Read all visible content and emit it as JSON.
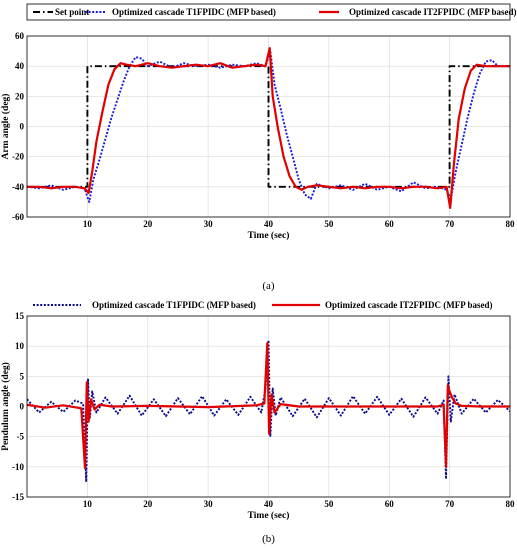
{
  "chart_data": [
    {
      "type": "line",
      "panel_label": "(a)",
      "xlabel": "Time (sec)",
      "ylabel": "Arm angle (deg)",
      "xlim": [
        0,
        80
      ],
      "ylim": [
        -60,
        60
      ],
      "xticks": [
        10,
        20,
        30,
        40,
        50,
        60,
        70,
        80
      ],
      "yticks": [
        -60,
        -40,
        -20,
        0,
        20,
        40,
        60
      ],
      "grid": true,
      "legend_position": "top",
      "series": [
        {
          "name": "Set point",
          "color": "#000000",
          "style": "dash-dot",
          "x": [
            0,
            10,
            10,
            40,
            40,
            70,
            70,
            80
          ],
          "y": [
            -40,
            -40,
            40,
            40,
            -40,
            -40,
            40,
            40
          ]
        },
        {
          "name": "Optimized cascade T1FPIDC (MFP based)",
          "color": "#1a1adb",
          "style": "dotted",
          "x": [
            0,
            2,
            4,
            6,
            8,
            9.5,
            10.3,
            11,
            12,
            13,
            14,
            15,
            16,
            17,
            18,
            19,
            20,
            22,
            24,
            26,
            28,
            30,
            32,
            34,
            36,
            38,
            39.5,
            40.3,
            41,
            42,
            43,
            44,
            45,
            46,
            47,
            48,
            50,
            52,
            54,
            56,
            58,
            60,
            62,
            64,
            66,
            68,
            69.5,
            70.2,
            71,
            72,
            73,
            74,
            75,
            76,
            77,
            78,
            80
          ],
          "y": [
            -40,
            -41,
            -39,
            -42,
            -40,
            -41,
            -50,
            -35,
            -22,
            -8,
            6,
            18,
            30,
            40,
            46,
            45,
            40,
            43,
            39,
            42,
            40,
            41,
            39,
            41,
            40,
            42,
            40,
            50,
            28,
            12,
            -5,
            -20,
            -35,
            -45,
            -48,
            -38,
            -41,
            -39,
            -42,
            -38,
            -42,
            -40,
            -43,
            -37,
            -41,
            -40,
            -42,
            -48,
            -30,
            -12,
            6,
            22,
            35,
            43,
            44,
            40,
            40
          ]
        },
        {
          "name": "Optimized cascade IT2FPIDC (MFP based)",
          "color": "#e00000",
          "style": "solid",
          "x": [
            0,
            2,
            4,
            6,
            8,
            9.5,
            10.2,
            10.8,
            11.5,
            12.5,
            13.5,
            14.5,
            15.5,
            16.5,
            18,
            20,
            22,
            24,
            26,
            28,
            30,
            32,
            34,
            36,
            38,
            39.5,
            40.2,
            40.7,
            41.5,
            42.5,
            43.5,
            44.5,
            45.5,
            46.5,
            48,
            50,
            52,
            54,
            56,
            58,
            60,
            62,
            64,
            66,
            68,
            69.5,
            70.1,
            70.7,
            71.5,
            72.5,
            73.5,
            74.5,
            76,
            78,
            80
          ],
          "y": [
            -40,
            -40,
            -41,
            -40,
            -40,
            -41,
            -44,
            -30,
            -10,
            10,
            28,
            38,
            42,
            41,
            40,
            42,
            40,
            39,
            40,
            41,
            40,
            42,
            39,
            40,
            41,
            40,
            52,
            20,
            0,
            -20,
            -33,
            -40,
            -42,
            -40,
            -39,
            -40,
            -41,
            -40,
            -41,
            -40,
            -40,
            -41,
            -40,
            -40,
            -41,
            -40,
            -54,
            -25,
            5,
            25,
            37,
            41,
            40,
            40,
            40
          ]
        }
      ]
    },
    {
      "type": "line",
      "panel_label": "(b)",
      "xlabel": "Time (sec)",
      "ylabel": "Pendulum angle (deg)",
      "xlim": [
        0,
        80
      ],
      "ylim": [
        -15,
        15
      ],
      "xticks": [
        10,
        20,
        30,
        40,
        50,
        60,
        70,
        80
      ],
      "yticks": [
        -15,
        -10,
        -5,
        0,
        5,
        10,
        15
      ],
      "grid": true,
      "legend_position": "top",
      "series": [
        {
          "name": "Optimized cascade T1FPIDC (MFP based)",
          "color": "#0a0a8a",
          "style": "dotted",
          "x": [
            0,
            2,
            4,
            6,
            8,
            9.3,
            9.8,
            10.1,
            10.4,
            10.8,
            11.5,
            13,
            15,
            17,
            19,
            21,
            23,
            25,
            27,
            29,
            31,
            33,
            35,
            37,
            38.8,
            39.5,
            40,
            40.3,
            40.7,
            41.2,
            42,
            44,
            46,
            48,
            50,
            52,
            54,
            56,
            58,
            60,
            62,
            64,
            66,
            68,
            69,
            69.4,
            69.8,
            70.2,
            70.8,
            72,
            74,
            76,
            78,
            80
          ],
          "y": [
            1.2,
            -1.0,
            0.8,
            -0.9,
            1.0,
            0.5,
            -12.5,
            4.5,
            -2.0,
            2.5,
            -1.0,
            1.5,
            -1.2,
            1.8,
            -1.5,
            1.2,
            -1.6,
            1.4,
            -1.3,
            1.7,
            -1.5,
            1.2,
            -1.4,
            1.6,
            -1.0,
            3.0,
            11.0,
            -5.0,
            3.0,
            -1.5,
            1.5,
            -1.6,
            1.3,
            -1.8,
            1.4,
            -1.5,
            1.7,
            -1.2,
            1.6,
            -1.4,
            1.3,
            -1.7,
            1.5,
            -1.2,
            1.0,
            -12.0,
            5.0,
            -2.5,
            2.0,
            -1.2,
            1.3,
            -1.0,
            1.1,
            -0.8
          ]
        },
        {
          "name": "Optimized cascade IT2FPIDC (MFP based)",
          "color": "#e00000",
          "style": "solid",
          "x": [
            0,
            3,
            6,
            9,
            9.6,
            9.9,
            10.2,
            10.6,
            11.2,
            12,
            14,
            20,
            30,
            38,
            39.3,
            39.8,
            40.1,
            40.5,
            41,
            42,
            45,
            50,
            60,
            68,
            69,
            69.4,
            69.7,
            70,
            70.4,
            71,
            72,
            75,
            80
          ],
          "y": [
            0.3,
            -0.2,
            0.2,
            -0.3,
            -10.2,
            4.0,
            -2.5,
            1.2,
            -0.5,
            0.3,
            0,
            0.1,
            -0.1,
            0.2,
            0.5,
            10.5,
            -4.5,
            2.0,
            -1.0,
            0.4,
            0,
            0,
            0,
            0,
            0.3,
            -10.0,
            3.5,
            2.5,
            1.5,
            0.5,
            0.1,
            0,
            0
          ]
        }
      ]
    }
  ]
}
